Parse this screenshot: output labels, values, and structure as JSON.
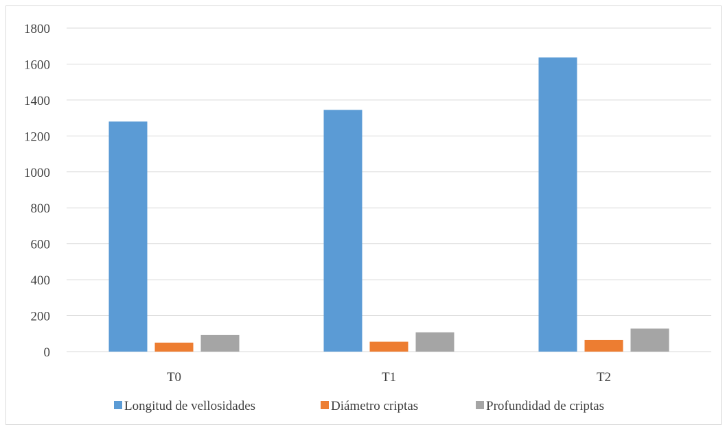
{
  "chart_data": {
    "type": "bar",
    "categories": [
      "T0",
      "T1",
      "T2"
    ],
    "series": [
      {
        "name": "Longitud de vellosidades",
        "values": [
          1280,
          1345,
          1637
        ],
        "color": "#5b9bd5"
      },
      {
        "name": "Diámetro criptas",
        "values": [
          50,
          55,
          65
        ],
        "color": "#ed7d31"
      },
      {
        "name": "Profundidad de criptas",
        "values": [
          92,
          107,
          128
        ],
        "color": "#a5a5a5"
      }
    ],
    "ylim": [
      0,
      1800
    ],
    "yticks": [
      0,
      200,
      400,
      600,
      800,
      1000,
      1200,
      1400,
      1600,
      1800
    ],
    "grid": true,
    "legend_position": "bottom",
    "title": "",
    "xlabel": "",
    "ylabel": ""
  }
}
